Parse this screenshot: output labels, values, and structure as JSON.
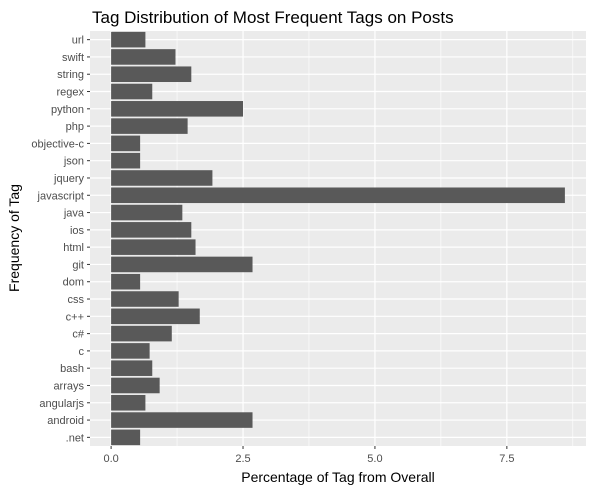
{
  "chart_data": {
    "type": "bar",
    "orientation": "horizontal",
    "title": "Tag Distribution of Most Frequent Tags on Posts",
    "xlabel": "Percentage of Tag from Overall",
    "ylabel": "Frequency of Tag",
    "categories": [
      ".net",
      "android",
      "angularjs",
      "arrays",
      "bash",
      "c",
      "c#",
      "c++",
      "css",
      "dom",
      "git",
      "html",
      "ios",
      "java",
      "javascript",
      "jquery",
      "json",
      "objective-c",
      "php",
      "python",
      "regex",
      "string",
      "swift",
      "url"
    ],
    "values": [
      0.55,
      2.68,
      0.65,
      0.92,
      0.78,
      0.73,
      1.15,
      1.68,
      1.28,
      0.55,
      2.68,
      1.6,
      1.52,
      1.35,
      8.6,
      1.92,
      0.55,
      0.55,
      1.45,
      2.5,
      0.78,
      1.52,
      1.22,
      0.65
    ],
    "xlim": [
      -0.4,
      9.0
    ],
    "xticks": [
      0.0,
      2.5,
      5.0,
      7.5
    ],
    "xtick_labels": [
      "0.0",
      "2.5",
      "5.0",
      "7.5"
    ],
    "grid": true,
    "legend": "none",
    "colors": {
      "bar": "#595959",
      "panel_background": "#ebebeb",
      "grid": "#ffffff"
    }
  }
}
